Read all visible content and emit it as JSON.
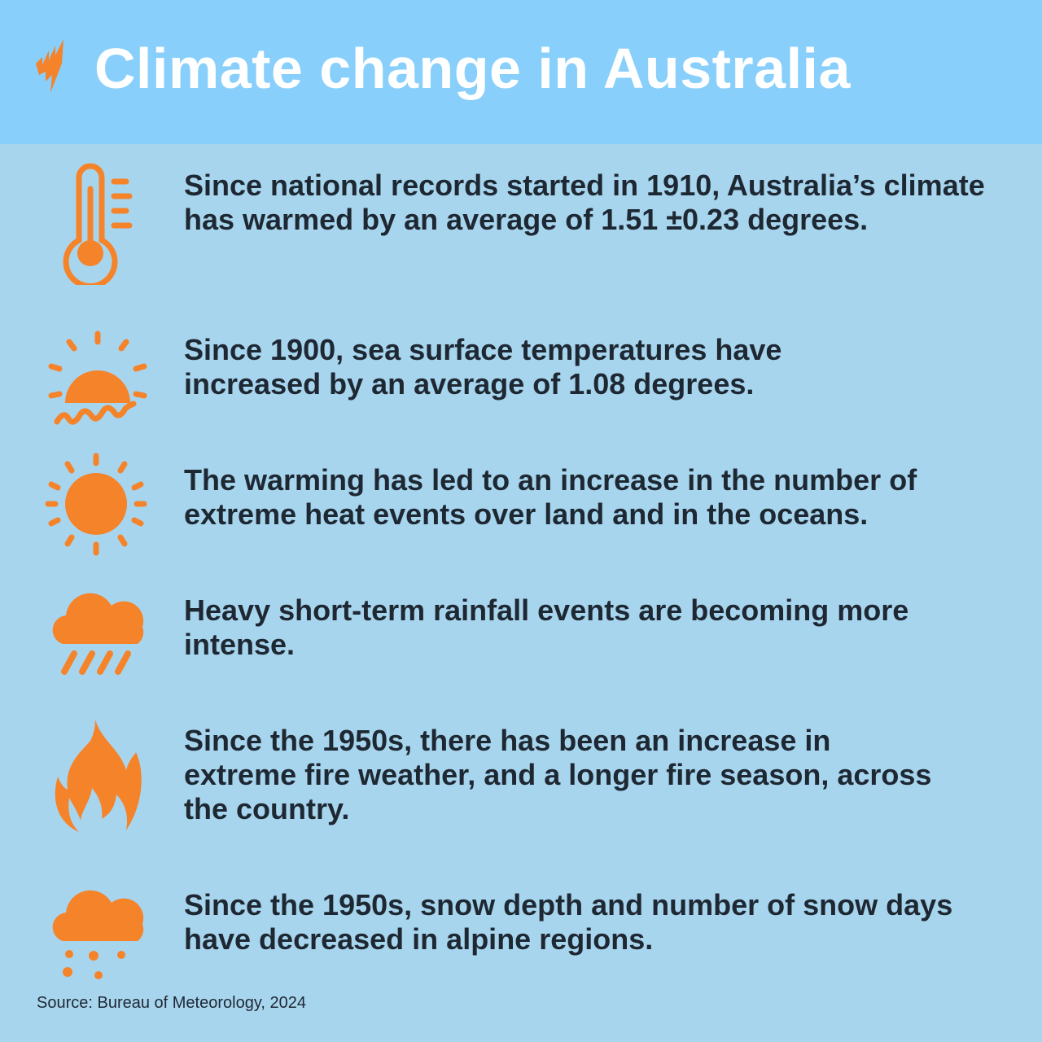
{
  "header": {
    "title": "Climate change in Australia",
    "logo": "sbs-logo"
  },
  "colors": {
    "header_bg": "#88cffb",
    "body_bg": "#a8d5ee",
    "accent": "#f5832a",
    "text": "#1e2833"
  },
  "items": [
    {
      "icon": "thermometer-icon",
      "text": "Since national records started in 1910, Australia’s climate has warmed by an average of 1.51 ±0.23 degrees."
    },
    {
      "icon": "sun-over-sea-icon",
      "text": "Since 1900, sea surface temperatures have increased by an average of 1.08 degrees."
    },
    {
      "icon": "sun-icon",
      "text": "The warming has led to an increase in the number of extreme heat events over land and in the oceans."
    },
    {
      "icon": "rain-cloud-icon",
      "text": "Heavy short-term rainfall events are becoming more intense."
    },
    {
      "icon": "fire-icon",
      "text": "Since the 1950s, there has been an increase in extreme fire weather, and a longer fire season, across the country."
    },
    {
      "icon": "snow-cloud-icon",
      "text": "Since the 1950s, snow depth and number of snow days have decreased in alpine regions."
    }
  ],
  "source": "Source: Bureau of Meteorology, 2024"
}
